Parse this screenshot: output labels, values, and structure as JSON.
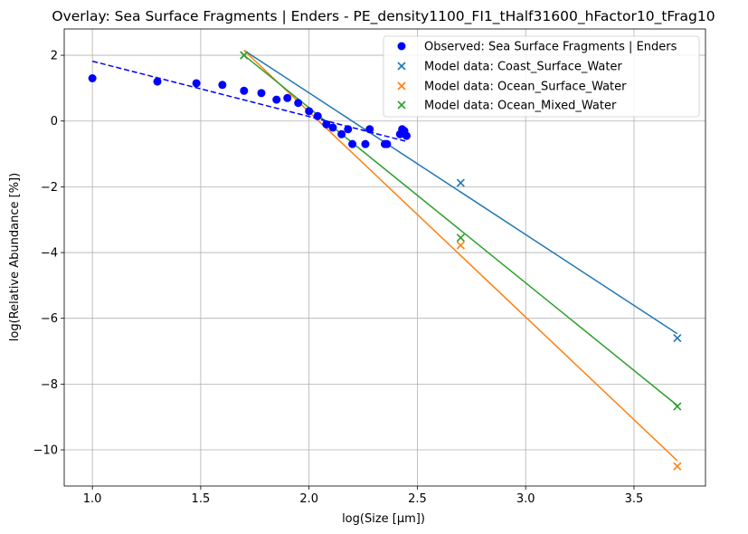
{
  "chart_data": {
    "type": "scatter",
    "title": "Overlay: Sea Surface Fragments | Enders - PE_density1100_FI1_tHalf31600_hFactor10_tFrag10",
    "xlabel": "log(Size [µm])",
    "ylabel": "log(Relative Abundance [%])",
    "xlim": [
      0.87,
      3.83
    ],
    "ylim": [
      -11.1,
      2.8
    ],
    "xticks": [
      1.0,
      1.5,
      2.0,
      2.5,
      3.0,
      3.5
    ],
    "xtick_labels": [
      "1.0",
      "1.5",
      "2.0",
      "2.5",
      "3.0",
      "3.5"
    ],
    "yticks": [
      2,
      0,
      -2,
      -4,
      -6,
      -8,
      -10
    ],
    "ytick_labels": [
      "2",
      "0",
      "−2",
      "−4",
      "−6",
      "−8",
      "−10"
    ],
    "grid": true,
    "legend_position": "upper right",
    "observed": {
      "name": "Observed: Sea Surface Fragments | Enders",
      "color": "#0000ff",
      "marker": "circle",
      "x": [
        1.0,
        1.3,
        1.48,
        1.6,
        1.7,
        1.78,
        1.85,
        1.9,
        1.95,
        2.0,
        2.04,
        2.08,
        2.11,
        2.15,
        2.18,
        2.2,
        2.26,
        2.28,
        2.35,
        2.36,
        2.42,
        2.44,
        2.45,
        2.43
      ],
      "y": [
        1.3,
        1.2,
        1.15,
        1.1,
        0.92,
        0.85,
        0.65,
        0.7,
        0.55,
        0.3,
        0.15,
        -0.1,
        -0.2,
        -0.4,
        -0.25,
        -0.7,
        -0.7,
        -0.25,
        -0.7,
        -0.7,
        -0.4,
        -0.3,
        -0.45,
        -0.25
      ]
    },
    "observed_fit": {
      "color": "#0000ff",
      "style": "dashed",
      "x": [
        1.0,
        2.45
      ],
      "y": [
        1.82,
        -0.62
      ]
    },
    "series": [
      {
        "name": "Model data: Coast_Surface_Water",
        "color": "#1f77b4",
        "points_x": [
          1.7,
          2.7,
          3.7
        ],
        "points_y": [
          2.0,
          -1.88,
          -6.6
        ],
        "fit_x": [
          1.7,
          3.7
        ],
        "fit_y": [
          2.15,
          -6.47
        ]
      },
      {
        "name": "Model data: Ocean_Surface_Water",
        "color": "#ff7f0e",
        "points_x": [
          1.7,
          2.7,
          3.7
        ],
        "points_y": [
          2.0,
          -3.78,
          -10.5
        ],
        "fit_x": [
          1.7,
          3.7
        ],
        "fit_y": [
          2.15,
          -10.33
        ]
      },
      {
        "name": "Model data: Ocean_Mixed_Water",
        "color": "#2ca02c",
        "points_x": [
          1.7,
          2.7,
          3.7
        ],
        "points_y": [
          2.0,
          -3.55,
          -8.68
        ],
        "fit_x": [
          1.7,
          3.7
        ],
        "fit_y": [
          2.0,
          -8.65
        ]
      }
    ]
  }
}
